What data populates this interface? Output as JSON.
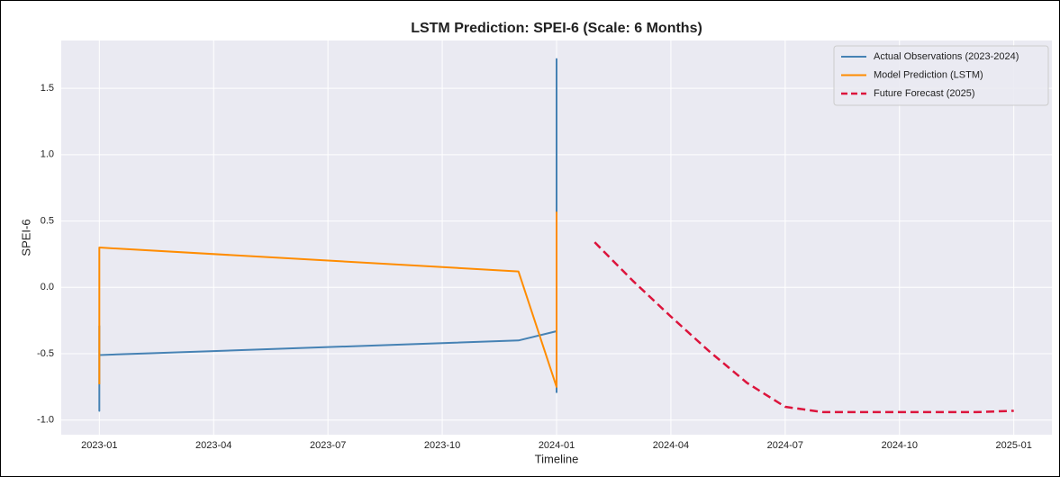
{
  "chart_data": {
    "type": "line",
    "title": "LSTM Prediction: SPEI-6 (Scale: 6 Months)",
    "xlabel": "Timeline",
    "ylabel": "SPEI-6",
    "xlim": [
      "2022-12",
      "2025-02"
    ],
    "xticks": [
      "2023-01",
      "2023-04",
      "2023-07",
      "2023-10",
      "2024-01",
      "2024-04",
      "2024-07",
      "2024-10",
      "2025-01"
    ],
    "ylim": [
      -1.11,
      1.86
    ],
    "yticks": [
      {
        "value": -1,
        "label": "-1.0"
      },
      -0.5,
      {
        "value": 0,
        "label": "0.0"
      },
      0.5,
      {
        "value": 1,
        "label": "1.0"
      },
      1.5
    ],
    "grid": true,
    "legend": "upper right",
    "series": [
      {
        "name": "Actual Observations (2023-2024)",
        "color": "#4682b4",
        "style": "solid",
        "x": [
          "2023-01",
          "2023-01",
          "2023-01",
          "2023-01",
          "2023-12",
          "2024-01",
          "2024-01",
          "2024-01",
          "2024-01",
          "2024-01"
        ],
        "values": [
          -0.85,
          -0.93,
          -0.29,
          -0.51,
          -0.4,
          -0.33,
          -0.79,
          0.3,
          1.72,
          1.31
        ]
      },
      {
        "name": "Model Prediction (LSTM)",
        "color": "#ff8c00",
        "style": "solid",
        "x": [
          "2023-01",
          "2023-01",
          "2023-12",
          "2024-01",
          "2024-01"
        ],
        "values": [
          -0.73,
          0.3,
          0.12,
          -0.75,
          0.57
        ]
      },
      {
        "name": "Future Forecast (2025)",
        "color": "#dc143c",
        "style": "dashed",
        "x": [
          "2024-02",
          "2024-03",
          "2024-04",
          "2024-05",
          "2024-06",
          "2024-07",
          "2024-08",
          "2024-09",
          "2024-10",
          "2024-11",
          "2024-12",
          "2025-01"
        ],
        "values": [
          0.34,
          0.05,
          -0.22,
          -0.48,
          -0.72,
          -0.9,
          -0.94,
          -0.94,
          -0.94,
          -0.94,
          -0.94,
          -0.93
        ]
      }
    ]
  }
}
